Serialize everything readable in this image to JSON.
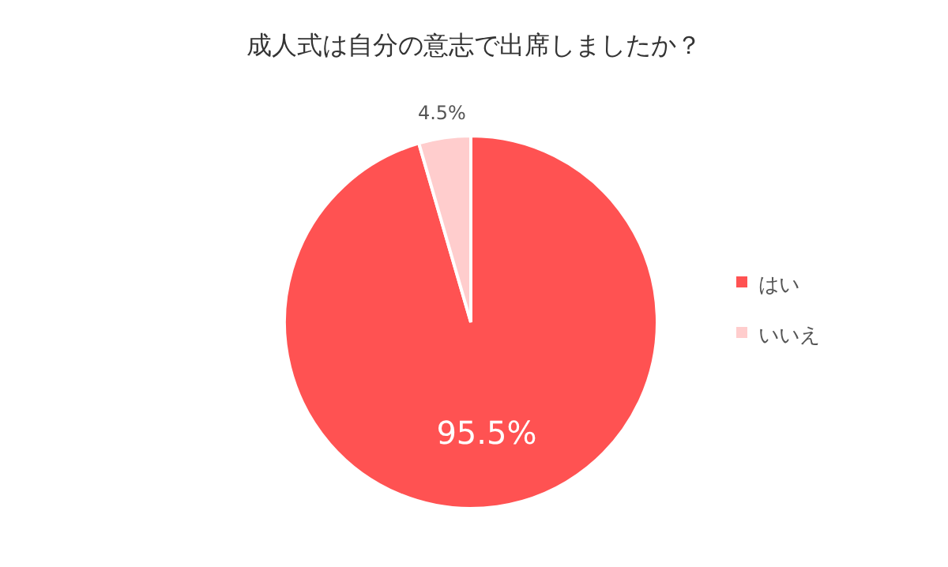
{
  "chart_data": {
    "type": "pie",
    "title": "成人式は自分の意志で出席しましたか？",
    "categories": [
      "はい",
      "いいえ"
    ],
    "values": [
      95.5,
      4.5
    ],
    "value_labels": [
      "95.5%",
      "4.5%"
    ],
    "colors": [
      "#ff5252",
      "#ffcdcd"
    ],
    "legend": "right"
  }
}
